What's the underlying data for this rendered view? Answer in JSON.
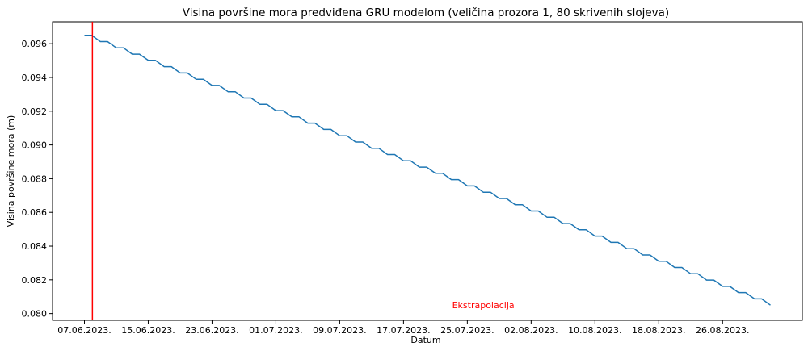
{
  "chart_data": {
    "type": "line",
    "title": "Visina površine mora predviđena GRU modelom (veličina prozora 1, 80 skrivenih slojeva)",
    "xlabel": "Datum",
    "ylabel": "Visina površine mora (m)",
    "x_ticks": [
      "07.06.2023.",
      "15.06.2023.",
      "23.06.2023.",
      "01.07.2023.",
      "09.07.2023.",
      "17.07.2023.",
      "25.07.2023.",
      "02.08.2023.",
      "10.08.2023.",
      "18.08.2023.",
      "26.08.2023."
    ],
    "x_start": "2023-06-07",
    "x_end": "2023-09-01",
    "xlim": [
      "2023-06-03",
      "2023-09-05"
    ],
    "y_ticks": [
      0.08,
      0.082,
      0.084,
      0.086,
      0.088,
      0.09,
      0.092,
      0.094,
      0.096
    ],
    "ylim": [
      0.0796,
      0.0973
    ],
    "series": [
      {
        "color": "#1f77b4",
        "y_start": 0.0965,
        "y_end": 0.0805,
        "steps": 43
      }
    ],
    "vline": {
      "x": "2023-06-08",
      "color": "#ff0000"
    },
    "annotation": {
      "text": "Ekstrapolacija",
      "x": "2023-07-27",
      "y": 0.0805,
      "color": "#ff0000"
    },
    "grid": false,
    "legend": "none"
  }
}
